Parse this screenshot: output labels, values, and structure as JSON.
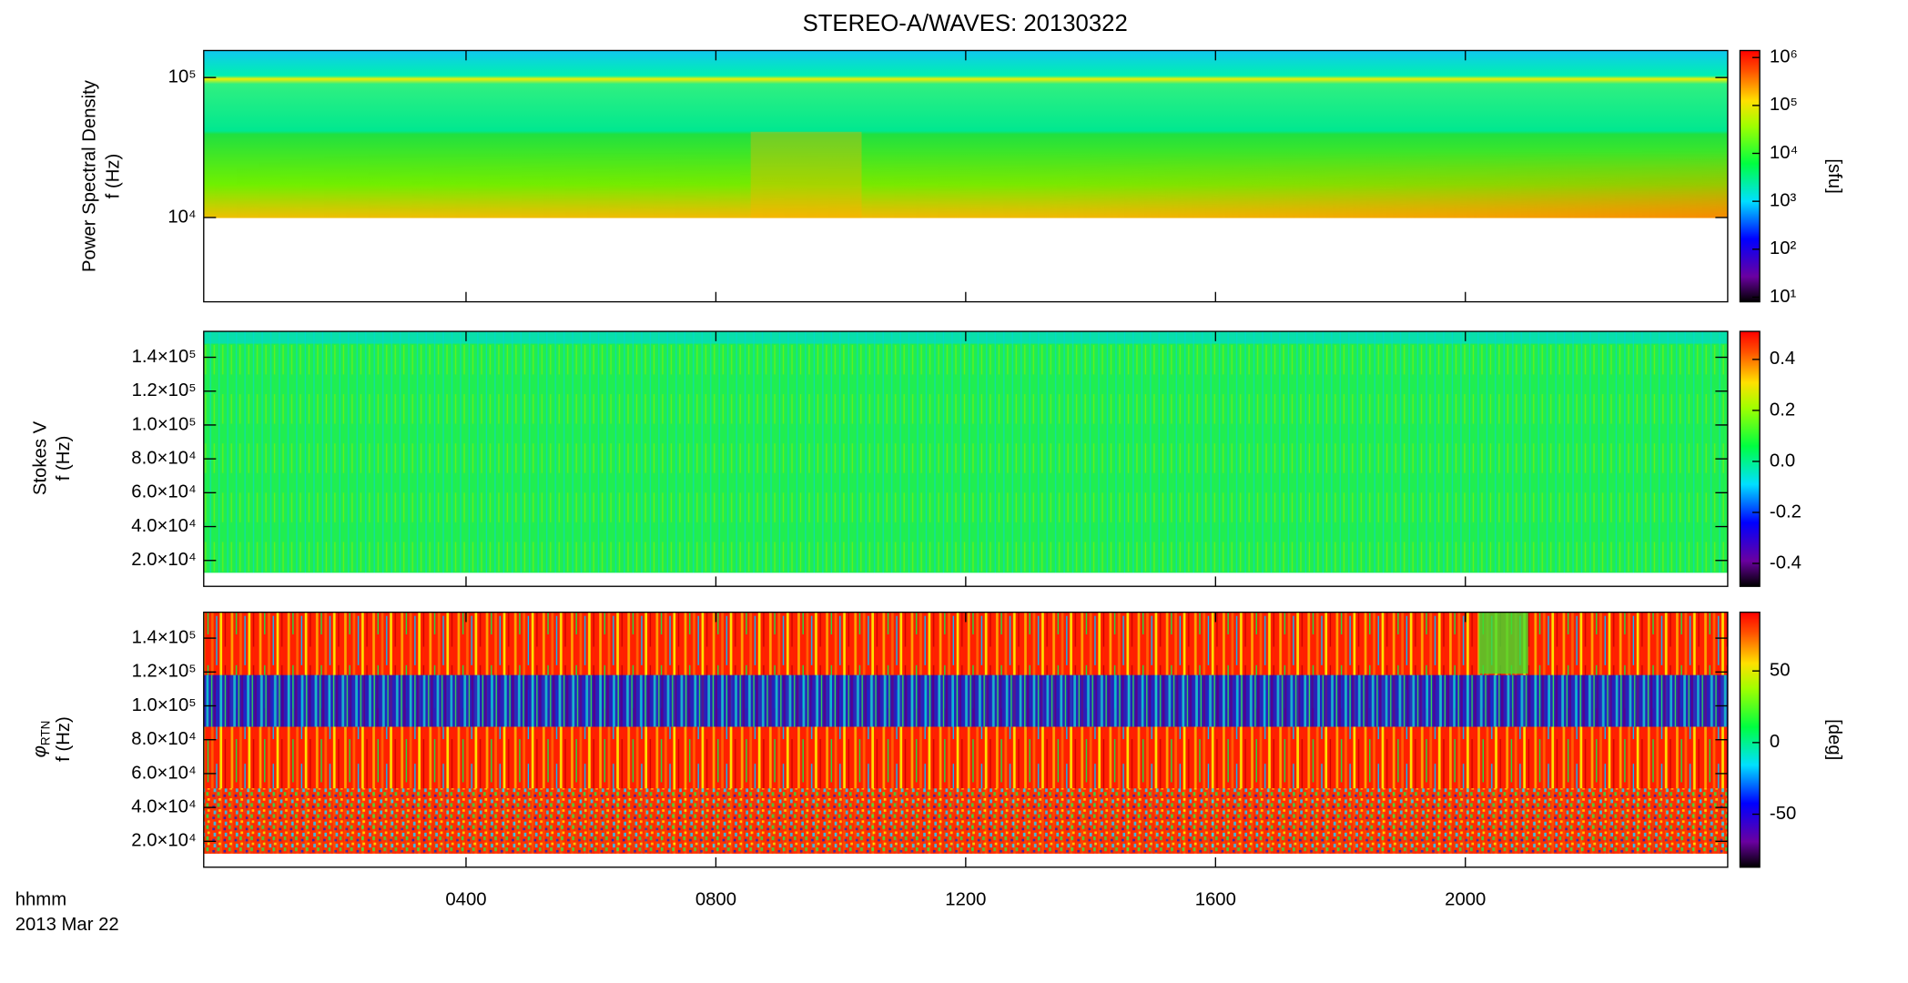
{
  "chart_data": [
    {
      "type": "heatmap",
      "title": "STEREO-A/WAVES: 20130322",
      "ylabel": "Power Spectral Density",
      "yunit": "f (Hz)",
      "ylog": true,
      "ylim": [
        2500,
        156000
      ],
      "yticks": [
        {
          "value": 10000,
          "label": "10⁴"
        },
        {
          "value": 100000,
          "label": "10⁵"
        }
      ],
      "zlog": true,
      "zlim": [
        8,
        1400000
      ],
      "zticks": [
        {
          "value": 10,
          "label": "10¹"
        },
        {
          "value": 100,
          "label": "10²"
        },
        {
          "value": 1000,
          "label": "10³"
        },
        {
          "value": 10000,
          "label": "10⁴"
        },
        {
          "value": 100000,
          "label": "10⁵"
        },
        {
          "value": 1000000,
          "label": "10⁶"
        }
      ],
      "zlabel": "[sfu]"
    },
    {
      "type": "heatmap",
      "ylabel": "Stokes V",
      "yunit": "f (Hz)",
      "ylog": false,
      "ylim": [
        4700,
        155300
      ],
      "yticks": [
        {
          "value": 20000,
          "label": "2.0×10⁴"
        },
        {
          "value": 40000,
          "label": "4.0×10⁴"
        },
        {
          "value": 60000,
          "label": "6.0×10⁴"
        },
        {
          "value": 80000,
          "label": "8.0×10⁴"
        },
        {
          "value": 100000,
          "label": "1.0×10⁵"
        },
        {
          "value": 120000,
          "label": "1.2×10⁵"
        },
        {
          "value": 140000,
          "label": "1.4×10⁵"
        }
      ],
      "zlog": false,
      "zlim": [
        -0.49,
        0.51
      ],
      "zticks": [
        -0.4,
        -0.2,
        {
          "value": 0,
          "label": "0.0"
        },
        0.2,
        0.4
      ],
      "zlabel": null
    },
    {
      "type": "heatmap",
      "ylabel_symbol": "φ",
      "ylabel_subscript": "RTN",
      "yunit": "f (Hz)",
      "ylog": false,
      "ylim": [
        4700,
        155300
      ],
      "yticks": [
        {
          "value": 20000,
          "label": "2.0×10⁴"
        },
        {
          "value": 40000,
          "label": "4.0×10⁴"
        },
        {
          "value": 60000,
          "label": "6.0×10⁴"
        },
        {
          "value": 80000,
          "label": "8.0×10⁴"
        },
        {
          "value": 100000,
          "label": "1.0×10⁵"
        },
        {
          "value": 120000,
          "label": "1.2×10⁵"
        },
        {
          "value": 140000,
          "label": "1.4×10⁵"
        }
      ],
      "zlog": false,
      "zlim": [
        -87,
        91
      ],
      "zticks": [
        -50,
        0,
        50
      ],
      "zlabel": "[deg]",
      "xlabel": "hhmm",
      "xsublabel": "2013 Mar 22",
      "xlim": [
        -0.2,
        24.2
      ],
      "xticks": [
        {
          "value": 4,
          "label": "0400"
        },
        {
          "value": 8,
          "label": "0800"
        },
        {
          "value": 12,
          "label": "1200"
        },
        {
          "value": 16,
          "label": "1600"
        },
        {
          "value": 20,
          "label": "2000"
        }
      ]
    }
  ]
}
